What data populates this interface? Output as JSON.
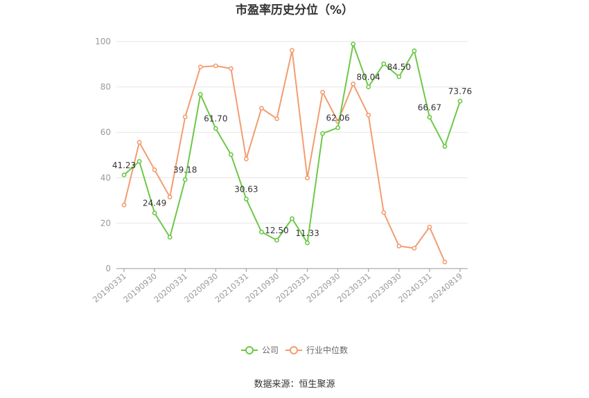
{
  "chart_data": {
    "type": "line",
    "title": "市盈率历史分位（%）",
    "source": "数据来源：恒生聚源",
    "ylim": [
      0,
      100
    ],
    "yticks": [
      0,
      20,
      40,
      60,
      80,
      100
    ],
    "x_tick_labels": [
      "20190331",
      "20190930",
      "20200331",
      "20200930",
      "20210331",
      "20210930",
      "20220331",
      "20220930",
      "20230331",
      "20230930",
      "20240331",
      "20240819"
    ],
    "x": [
      "20190331",
      "20190630",
      "20190930",
      "20191231",
      "20200331",
      "20200630",
      "20200930",
      "20201231",
      "20210331",
      "20210630",
      "20210930",
      "20211231",
      "20220331",
      "20220630",
      "20220930",
      "20221231",
      "20230331",
      "20230630",
      "20230930",
      "20231231",
      "20240331",
      "20240630",
      "20240819"
    ],
    "legend_position": "bottom",
    "grid": true,
    "series": [
      {
        "name": "公司",
        "color": "#6cc846",
        "values": [
          41.23,
          47.2,
          24.49,
          13.8,
          39.18,
          76.7,
          61.7,
          50.2,
          30.63,
          16.1,
          12.5,
          22.0,
          11.33,
          59.5,
          62.06,
          98.9,
          80.04,
          90.2,
          84.5,
          95.9,
          66.67,
          53.8,
          73.76
        ],
        "labels": [
          "41.23",
          "",
          "24.49",
          "",
          "39.18",
          "",
          "61.70",
          "",
          "30.63",
          "",
          "12.50",
          "",
          "11.33",
          "",
          "62.06",
          "",
          "80.04",
          "",
          "84.50",
          "",
          "66.67",
          "",
          "73.76"
        ]
      },
      {
        "name": "行业中位数",
        "color": "#f39c6f",
        "values": [
          28.0,
          55.6,
          43.5,
          31.5,
          66.8,
          88.8,
          89.3,
          88.1,
          48.3,
          70.6,
          66.0,
          96.1,
          39.9,
          77.7,
          64.8,
          81.3,
          67.6,
          24.7,
          9.9,
          9.0,
          18.3,
          2.9,
          null
        ]
      }
    ]
  }
}
